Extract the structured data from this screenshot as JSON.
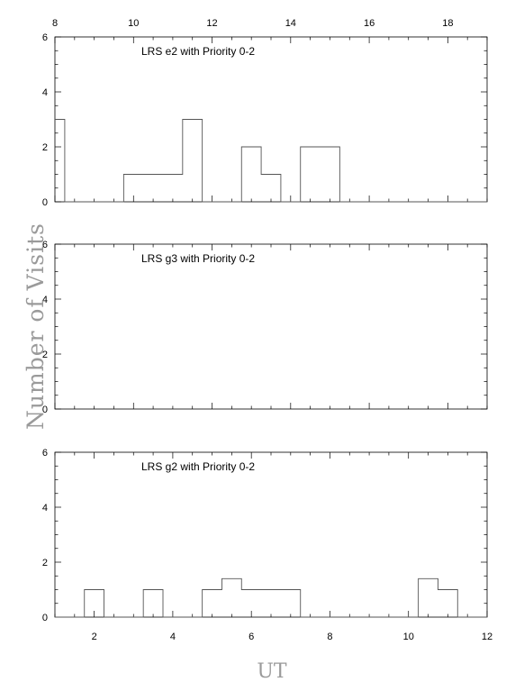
{
  "figure": {
    "ylabel": "Number of Visits",
    "xlabel": "UT"
  },
  "chart_data": [
    {
      "type": "histogram",
      "title": "LRS e2 with Priority 0-2",
      "xlim": [
        8,
        19
      ],
      "ylim": [
        0,
        6
      ],
      "x_ticks_top": [
        "8",
        "10",
        "12",
        "14",
        "16",
        "18"
      ],
      "y_ticks": [
        "0",
        "2",
        "4",
        "6"
      ],
      "bins": [
        {
          "x0": 8.0,
          "x1": 8.25,
          "y": 3
        },
        {
          "x0": 8.25,
          "x1": 9.75,
          "y": 0
        },
        {
          "x0": 9.75,
          "x1": 11.25,
          "y": 1
        },
        {
          "x0": 11.25,
          "x1": 11.75,
          "y": 3
        },
        {
          "x0": 11.75,
          "x1": 12.75,
          "y": 0
        },
        {
          "x0": 12.75,
          "x1": 13.25,
          "y": 2
        },
        {
          "x0": 13.25,
          "x1": 13.75,
          "y": 1
        },
        {
          "x0": 13.75,
          "x1": 14.25,
          "y": 0
        },
        {
          "x0": 14.25,
          "x1": 15.25,
          "y": 2
        },
        {
          "x0": 15.25,
          "x1": 19.0,
          "y": 0
        }
      ]
    },
    {
      "type": "histogram",
      "title": "LRS g3 with Priority 0-2",
      "xlim": [
        8,
        19
      ],
      "ylim": [
        0,
        6
      ],
      "y_ticks": [
        "0",
        "2",
        "4",
        "6"
      ],
      "bins": []
    },
    {
      "type": "histogram",
      "title": "LRS g2 with Priority 0-2",
      "xlim": [
        1,
        12
      ],
      "ylim": [
        0,
        6
      ],
      "x_ticks_bottom": [
        "2",
        "4",
        "6",
        "8",
        "10",
        "12"
      ],
      "y_ticks": [
        "0",
        "2",
        "4",
        "6"
      ],
      "bins": [
        {
          "x0": 1.0,
          "x1": 1.75,
          "y": 0
        },
        {
          "x0": 1.75,
          "x1": 2.25,
          "y": 1
        },
        {
          "x0": 2.25,
          "x1": 3.25,
          "y": 0
        },
        {
          "x0": 3.25,
          "x1": 3.75,
          "y": 1
        },
        {
          "x0": 3.75,
          "x1": 4.75,
          "y": 0
        },
        {
          "x0": 4.75,
          "x1": 5.25,
          "y": 1
        },
        {
          "x0": 5.25,
          "x1": 5.75,
          "y": 1.4
        },
        {
          "x0": 5.75,
          "x1": 7.25,
          "y": 1
        },
        {
          "x0": 7.25,
          "x1": 10.25,
          "y": 0
        },
        {
          "x0": 10.25,
          "x1": 10.75,
          "y": 1.4
        },
        {
          "x0": 10.75,
          "x1": 11.25,
          "y": 1
        },
        {
          "x0": 11.25,
          "x1": 12.0,
          "y": 0
        }
      ]
    }
  ]
}
